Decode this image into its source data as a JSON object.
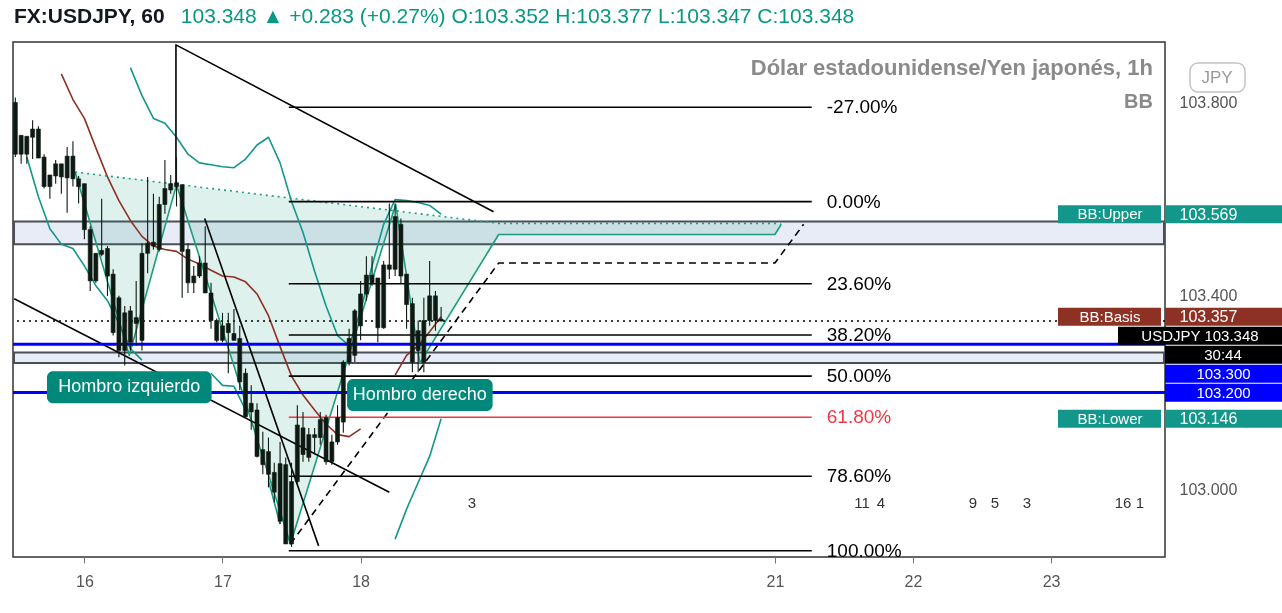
{
  "chart_data": {
    "type": "candlestick",
    "title": "FX:USDJPY, 60",
    "subtitle": "Dólar estadounidense/Yen japonés, 1h",
    "annotations": [
      "103.348 ▲ +0.283 (+0.27%) O:103.352 H:103.377 L:103.347 C:103.348",
      "BB",
      "JPY",
      "30:44",
      {
        "text": "Hombro izquierdo",
        "x": 16.325,
        "y": 103.277
      },
      {
        "text": "Hombro derecho",
        "x": 18.429,
        "y": 103.261
      },
      "3",
      "11",
      "4",
      "9",
      "5",
      "3",
      "16",
      "1"
    ],
    "color": "#0d1a13",
    "x": [
      15.5,
      15.542,
      15.583,
      15.625,
      15.667,
      15.708,
      15.75,
      15.792,
      15.833,
      15.875,
      15.917,
      15.958,
      16.0,
      16.042,
      16.083,
      16.125,
      16.167,
      16.208,
      16.25,
      16.292,
      16.333,
      16.375,
      16.417,
      16.458,
      16.5,
      16.542,
      16.583,
      16.625,
      16.667,
      16.708,
      16.75,
      16.792,
      16.833,
      16.875,
      16.917,
      16.958,
      17.0,
      17.042,
      17.083,
      17.125,
      17.167,
      17.208,
      17.25,
      17.292,
      17.333,
      17.375,
      17.417,
      17.458,
      17.5,
      17.542,
      17.583,
      17.625,
      17.667,
      17.708,
      17.75,
      17.792,
      17.833,
      17.875,
      17.917,
      17.958,
      18.0,
      18.042,
      18.083,
      18.125,
      18.167,
      18.208,
      18.25,
      18.292,
      18.333,
      18.375,
      18.417,
      18.458,
      18.5,
      18.542,
      18.583
    ],
    "ohlc": [
      [
        103.8,
        103.81,
        103.687,
        103.693
      ],
      [
        103.732,
        103.732,
        103.673,
        103.693
      ],
      [
        103.73,
        103.73,
        103.673,
        103.693
      ],
      [
        103.745,
        103.763,
        103.683,
        103.728
      ],
      [
        103.745,
        103.751,
        103.685,
        103.685
      ],
      [
        103.687,
        103.693,
        103.622,
        103.626
      ],
      [
        103.65,
        103.65,
        103.601,
        103.626
      ],
      [
        103.673,
        103.681,
        103.632,
        103.648
      ],
      [
        103.673,
        103.673,
        103.611,
        103.646
      ],
      [
        103.689,
        103.708,
        103.572,
        103.644
      ],
      [
        103.689,
        103.72,
        103.626,
        103.642
      ],
      [
        103.642,
        103.648,
        103.591,
        103.626
      ],
      [
        103.632,
        103.632,
        103.517,
        103.537
      ],
      [
        103.537,
        103.544,
        103.41,
        103.431
      ],
      [
        103.488,
        103.488,
        103.427,
        103.431
      ],
      [
        103.494,
        103.601,
        103.482,
        103.486
      ],
      [
        103.498,
        103.503,
        103.4,
        103.441
      ],
      [
        103.445,
        103.455,
        103.318,
        103.324
      ],
      [
        103.396,
        103.4,
        103.273,
        103.287
      ],
      [
        103.365,
        103.379,
        103.256,
        103.287
      ],
      [
        103.369,
        103.379,
        103.287,
        103.304
      ],
      [
        103.355,
        103.431,
        103.297,
        103.343
      ],
      [
        103.488,
        103.509,
        103.287,
        103.308
      ],
      [
        103.509,
        103.646,
        103.447,
        103.488
      ],
      [
        103.511,
        103.611,
        103.496,
        103.503
      ],
      [
        103.589,
        103.605,
        103.492,
        103.496
      ],
      [
        103.622,
        103.681,
        103.57,
        103.589
      ],
      [
        103.632,
        103.65,
        103.611,
        103.619
      ],
      [
        103.634,
        103.687,
        103.585,
        103.626
      ],
      [
        103.63,
        103.63,
        103.396,
        103.492
      ],
      [
        103.496,
        103.509,
        103.406,
        103.427
      ],
      [
        103.441,
        103.462,
        103.406,
        103.427
      ],
      [
        103.468,
        103.482,
        103.437,
        103.441
      ],
      [
        103.468,
        103.544,
        103.406,
        103.406
      ],
      [
        103.406,
        103.427,
        103.332,
        103.349
      ],
      [
        103.349,
        103.353,
        103.304,
        103.308
      ],
      [
        103.338,
        103.365,
        103.304,
        103.308
      ],
      [
        103.343,
        103.365,
        103.24,
        103.324
      ],
      [
        103.322,
        103.373,
        103.308,
        103.308
      ],
      [
        103.312,
        103.338,
        103.205,
        103.222
      ],
      [
        103.24,
        103.25,
        103.148,
        103.15
      ],
      [
        103.178,
        103.215,
        103.123,
        103.16
      ],
      [
        103.164,
        103.178,
        103.066,
        103.068
      ],
      [
        103.082,
        103.119,
        103.031,
        103.051
      ],
      [
        103.078,
        103.107,
        103.004,
        103.031
      ],
      [
        103.035,
        103.055,
        102.973,
        102.994
      ],
      [
        103.053,
        103.098,
        102.928,
        102.934
      ],
      [
        103.051,
        103.066,
        102.887,
        102.887
      ],
      [
        103.016,
        103.055,
        102.881,
        102.887
      ],
      [
        103.133,
        103.174,
        103.01,
        103.016
      ],
      [
        103.127,
        103.16,
        103.057,
        103.072
      ],
      [
        103.113,
        103.127,
        103.057,
        103.066
      ],
      [
        103.113,
        103.127,
        103.072,
        103.107
      ],
      [
        103.144,
        103.16,
        103.092,
        103.107
      ],
      [
        103.148,
        103.154,
        103.051,
        103.057
      ],
      [
        103.098,
        103.113,
        103.051,
        103.057
      ],
      [
        103.148,
        103.174,
        103.092,
        103.098
      ],
      [
        103.263,
        103.267,
        103.117,
        103.139
      ],
      [
        103.312,
        103.332,
        103.256,
        103.263
      ],
      [
        103.369,
        103.373,
        103.263,
        103.277
      ],
      [
        103.404,
        103.431,
        103.308,
        103.338
      ],
      [
        103.443,
        103.482,
        103.39,
        103.404
      ],
      [
        103.443,
        103.482,
        103.421,
        103.427
      ],
      [
        103.437,
        103.437,
        103.304,
        103.334
      ],
      [
        103.464,
        103.472,
        103.332,
        103.334
      ],
      [
        103.464,
        103.591,
        103.435,
        103.455
      ],
      [
        103.564,
        103.591,
        103.441,
        103.455
      ],
      [
        103.548,
        103.56,
        103.425,
        103.441
      ],
      [
        103.445,
        103.445,
        103.332,
        103.382
      ],
      [
        103.384,
        103.396,
        103.242,
        103.263
      ],
      [
        103.328,
        103.349,
        103.242,
        103.287
      ],
      [
        103.349,
        103.396,
        103.242,
        103.263
      ],
      [
        103.4,
        103.472,
        103.338,
        103.349
      ],
      [
        103.4,
        103.41,
        103.328,
        103.349
      ],
      [
        103.352,
        103.377,
        103.347,
        103.348
      ]
    ],
    "series": [
      {
        "type": "line",
        "name": "BB:Upper",
        "color": "#12978a",
        "x": [
          16.333,
          16.417,
          16.5,
          16.583,
          16.667,
          16.75,
          16.833,
          16.917,
          17.0,
          17.083,
          17.167,
          17.25,
          17.333,
          17.417,
          17.5,
          17.583,
          17.667,
          17.75,
          17.833,
          17.917,
          18.0,
          18.083,
          18.167,
          18.25,
          18.333,
          18.417,
          18.5,
          18.583
        ],
        "values": [
          103.872,
          103.814,
          103.767,
          103.757,
          103.728,
          103.693,
          103.675,
          103.671,
          103.667,
          103.665,
          103.683,
          103.712,
          103.728,
          103.675,
          103.595,
          103.531,
          103.451,
          103.379,
          103.318,
          103.297,
          103.369,
          103.462,
          103.548,
          103.599,
          103.597,
          103.593,
          103.587,
          103.569
        ]
      },
      {
        "type": "line",
        "name": "BB:Basis",
        "color": "#8d3124",
        "x": [
          15.833,
          15.917,
          16.0,
          16.083,
          16.167,
          16.25,
          16.333,
          16.417,
          16.5,
          16.583,
          16.667,
          16.75,
          16.833,
          16.917,
          17.0,
          17.083,
          17.167,
          17.25,
          17.333,
          17.417,
          17.5,
          17.583,
          17.667,
          17.75,
          17.833,
          17.917,
          18.0,
          18.083,
          18.167,
          18.25,
          18.333,
          18.417,
          18.5,
          18.583
        ],
        "values": [
          103.859,
          103.806,
          103.767,
          103.706,
          103.646,
          103.597,
          103.556,
          103.523,
          103.503,
          103.496,
          103.492,
          103.476,
          103.466,
          103.453,
          103.441,
          103.439,
          103.429,
          103.404,
          103.359,
          103.295,
          103.234,
          103.195,
          103.164,
          103.135,
          103.113,
          103.109,
          103.125,
          null,
          null,
          103.236,
          103.277,
          103.297,
          103.326,
          103.357
        ]
      },
      {
        "type": "line",
        "name": "BB:Lower",
        "color": "#12978a",
        "x": [
          15.583,
          15.667,
          15.75,
          15.833,
          15.917,
          16.0,
          16.083,
          16.167,
          16.25,
          16.333,
          16.417,
          16.5,
          16.583,
          16.667,
          16.75,
          16.833,
          16.917,
          17.0,
          17.083,
          17.167,
          17.25,
          17.333,
          17.417,
          17.5,
          17.583,
          17.667,
          17.75,
          17.833,
          17.917,
          18.0,
          18.083,
          18.167,
          18.25,
          18.333,
          18.417,
          18.5,
          18.583
        ],
        "values": [
          103.687,
          103.605,
          103.539,
          103.507,
          103.498,
          103.462,
          103.421,
          103.39,
          103.343,
          103.291,
          103.267,
          null,
          null,
          null,
          null,
          null,
          103.24,
          103.215,
          103.213,
          103.164,
          null,
          103.018,
          102.928,
          null,
          null,
          null,
          null,
          null,
          null,
          null,
          null,
          null,
          102.897,
          102.959,
          103.014,
          103.068,
          103.146
        ]
      },
      {
        "type": "line",
        "color": "#1a9e7a",
        "x": [
          15.933,
          16.325,
          16.667,
          17.492,
          18.254,
          18.429,
          19.0,
          21.0,
          21.046
        ],
        "values": [
          103.656,
          103.277,
          103.63,
          102.887,
          103.589,
          103.261,
          103.527,
          103.527,
          103.548
        ],
        "lower": [
          103.656,
          103.277,
          103.63,
          102.887,
          103.589,
          103.261,
          103.527,
          103.527,
          103.548
        ],
        "upper": [
          103.656,
          103.643,
          103.63,
          103.602,
          103.575,
          103.569,
          103.55,
          103.55,
          103.548
        ]
      },
      {
        "type": "line",
        "color": "#1a9e8a",
        "line_style": "dotted",
        "x": [
          15.933,
          19.0,
          21.0,
          21.046
        ],
        "values": [
          103.656,
          103.55,
          103.55,
          103.548
        ]
      },
      {
        "type": "line",
        "color": "#000000",
        "x": [
          16.663,
          16.663,
          18.963
        ],
        "values": [
          103.626,
          103.919,
          103.574
        ]
      },
      {
        "type": "line",
        "color": "#000000",
        "x": [
          16.871,
          17.696
        ],
        "values": [
          103.56,
          102.883
        ]
      },
      {
        "type": "line",
        "color": "#000000",
        "x": [
          15.492,
          18.208
        ],
        "values": [
          103.394,
          102.994
        ]
      },
      {
        "type": "line",
        "color": "#000000",
        "line_style": "dashed",
        "x": [
          17.492,
          19.0,
          21.0,
          21.208
        ],
        "values": [
          102.887,
          103.468,
          103.468,
          103.548
        ]
      },
      {
        "type": "line",
        "name": "-27.00%",
        "color": "#000000",
        "x": [
          17.48,
          21.267
        ],
        "values": [
          103.79,
          103.79
        ]
      },
      {
        "type": "line",
        "name": "0.00%",
        "color": "#000000",
        "x": [
          17.48,
          21.267
        ],
        "values": [
          103.595,
          103.595
        ]
      },
      {
        "type": "line",
        "name": "23.60%",
        "color": "#000000",
        "x": [
          17.48,
          21.267
        ],
        "values": [
          103.425,
          103.425
        ]
      },
      {
        "type": "line",
        "name": "38.20%",
        "color": "#000000",
        "x": [
          17.48,
          21.267
        ],
        "values": [
          103.319,
          103.319
        ]
      },
      {
        "type": "line",
        "name": "50.00%",
        "color": "#000000",
        "x": [
          17.48,
          21.267
        ],
        "values": [
          103.234,
          103.234
        ]
      },
      {
        "type": "line",
        "name": "61.80%",
        "color": "#f23645",
        "x": [
          17.48,
          21.267
        ],
        "values": [
          103.149,
          103.149
        ]
      },
      {
        "type": "line",
        "name": "78.60%",
        "color": "#000000",
        "x": [
          17.48,
          21.267
        ],
        "values": [
          103.027,
          103.027
        ]
      },
      {
        "type": "line",
        "name": "100.00%",
        "color": "#000000",
        "x": [
          17.48,
          21.267
        ],
        "values": [
          102.873,
          102.873
        ]
      }
    ],
    "ref_lines": [
      {
        "axis": "y",
        "value": 103.348,
        "label": "USDJPY 103.348",
        "color": "#000000",
        "line_style": "dotted"
      },
      {
        "axis": "y",
        "value": 103.3,
        "label": "103.300",
        "color": "#0000ff"
      },
      {
        "axis": "y",
        "value": 103.2,
        "label": "103.200",
        "color": "#0000ff"
      }
    ],
    "bands": [
      {
        "axis": "y",
        "from": 103.507,
        "to": 103.554,
        "color": "#e8ecf6"
      },
      {
        "axis": "y",
        "from": 103.261,
        "to": 103.283,
        "color": "#e8ecf6"
      }
    ],
    "xlim": [
      15.483,
      23.825
    ],
    "ylim": [
      102.86,
      103.925
    ],
    "xticks": [
      16,
      17,
      18,
      21,
      22,
      23
    ],
    "yticks": [
      {
        "value": 103.0,
        "label": "103.000"
      },
      {
        "value": 103.146,
        "label": "103.146"
      },
      {
        "value": 103.357,
        "label": "103.357"
      },
      {
        "value": 103.4,
        "label": "103.400"
      },
      {
        "value": 103.569,
        "label": "103.569"
      },
      {
        "value": 103.8,
        "label": "103.800"
      }
    ]
  }
}
